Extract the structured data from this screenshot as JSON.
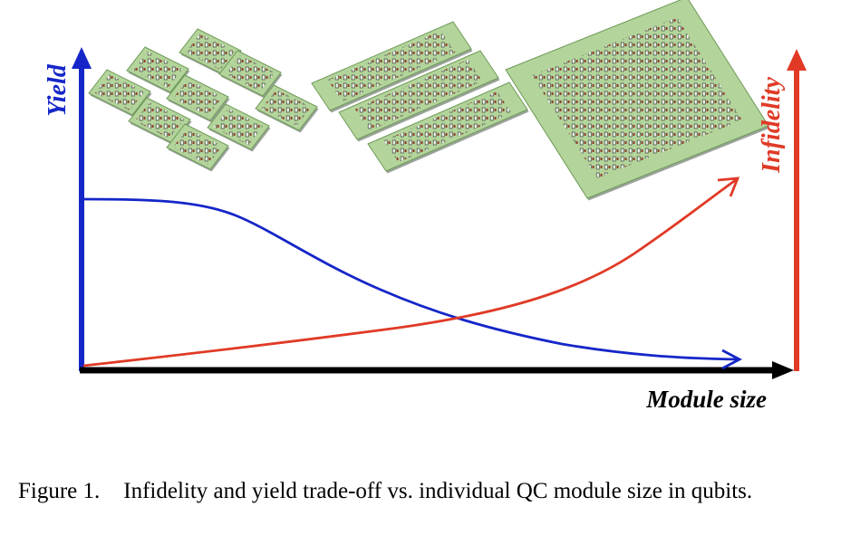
{
  "axes": {
    "y_left_label": "Yield",
    "y_right_label": "Infidelity",
    "x_label": "Module size"
  },
  "colors": {
    "yield": "#1526c8",
    "infidelity": "#e03a26",
    "x_axis": "#000000",
    "chip_fill": "#b3d49b",
    "chip_edge": "#6f9a58"
  },
  "chips": [
    {
      "description": "many small modules",
      "modules": 9,
      "grid": [
        3,
        3
      ]
    },
    {
      "description": "few medium modules",
      "modules": 3,
      "grid": [
        3,
        1
      ]
    },
    {
      "description": "one large module",
      "modules": 1,
      "grid": [
        1,
        1
      ]
    }
  ],
  "caption": {
    "number": "Figure 1.",
    "text": "Infidelity and yield trade-off vs. individual QC module size in qubits."
  }
}
